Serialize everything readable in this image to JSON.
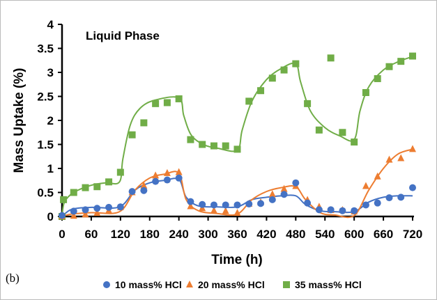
{
  "chart_data": {
    "type": "scatter",
    "panel_label": "(b)",
    "annotation": "Liquid Phase",
    "xlabel": "Time (h)",
    "ylabel": "Mass Uptake (%)",
    "xlim": [
      0,
      720
    ],
    "ylim": [
      0,
      4
    ],
    "xticks": [
      "0",
      "60",
      "120",
      "180",
      "240",
      "300",
      "360",
      "420",
      "480",
      "540",
      "600",
      "660",
      "720"
    ],
    "yticks": [
      "0",
      "0.5",
      "1",
      "1.5",
      "2",
      "2.5",
      "3",
      "3.5",
      "4"
    ],
    "grid": false,
    "legend_position": "bottom",
    "series": [
      {
        "name": "10 mass% HCl",
        "color": "#4472C4",
        "marker": "circle",
        "x": [
          0,
          24,
          48,
          72,
          96,
          120,
          144,
          168,
          192,
          216,
          240,
          264,
          288,
          312,
          336,
          360,
          384,
          408,
          432,
          456,
          480,
          504,
          528,
          552,
          576,
          600,
          624,
          648,
          672,
          696,
          720
        ],
        "y": [
          0.02,
          0.11,
          0.14,
          0.17,
          0.19,
          0.2,
          0.52,
          0.54,
          0.73,
          0.76,
          0.8,
          0.31,
          0.25,
          0.24,
          0.24,
          0.24,
          0.26,
          0.27,
          0.35,
          0.46,
          0.7,
          0.28,
          0.14,
          0.14,
          0.12,
          0.12,
          0.24,
          0.28,
          0.39,
          0.4,
          0.6
        ],
        "fit": [
          [
            0,
            0
          ],
          [
            20,
            0.15
          ],
          [
            60,
            0.19
          ],
          [
            118,
            0.2
          ],
          [
            150,
            0.55
          ],
          [
            180,
            0.7
          ],
          [
            210,
            0.75
          ],
          [
            240,
            0.77
          ],
          [
            255,
            0.4
          ],
          [
            280,
            0.22
          ],
          [
            320,
            0.2
          ],
          [
            360,
            0.2
          ],
          [
            390,
            0.35
          ],
          [
            420,
            0.4
          ],
          [
            450,
            0.43
          ],
          [
            480,
            0.43
          ],
          [
            500,
            0.25
          ],
          [
            530,
            0.12
          ],
          [
            560,
            0.1
          ],
          [
            600,
            0.1
          ],
          [
            630,
            0.3
          ],
          [
            660,
            0.4
          ],
          [
            690,
            0.43
          ],
          [
            720,
            0.43
          ]
        ]
      },
      {
        "name": "20 mass% HCl",
        "color": "#ED7D31",
        "marker": "triangle",
        "x": [
          0,
          24,
          48,
          72,
          96,
          120,
          144,
          168,
          192,
          216,
          240,
          264,
          288,
          312,
          336,
          360,
          384,
          408,
          432,
          456,
          480,
          504,
          528,
          552,
          576,
          600,
          624,
          648,
          672,
          696,
          720
        ],
        "y": [
          0,
          0.01,
          0.04,
          0.07,
          0.12,
          0.19,
          0.5,
          0.64,
          0.85,
          0.9,
          0.92,
          0.21,
          0.17,
          0.12,
          0.11,
          0.07,
          0.26,
          0.29,
          0.46,
          0.57,
          0.63,
          0.34,
          0.2,
          0.13,
          0.13,
          0.1,
          0.63,
          0.83,
          1.18,
          1.21,
          1.4
        ],
        "fit": [
          [
            0,
            0
          ],
          [
            20,
            0.05
          ],
          [
            60,
            0.08
          ],
          [
            118,
            0.1
          ],
          [
            150,
            0.55
          ],
          [
            180,
            0.8
          ],
          [
            210,
            0.88
          ],
          [
            240,
            0.9
          ],
          [
            255,
            0.35
          ],
          [
            280,
            0.12
          ],
          [
            320,
            0.06
          ],
          [
            360,
            0.05
          ],
          [
            390,
            0.35
          ],
          [
            420,
            0.52
          ],
          [
            450,
            0.6
          ],
          [
            480,
            0.62
          ],
          [
            500,
            0.35
          ],
          [
            530,
            0.08
          ],
          [
            560,
            0.03
          ],
          [
            600,
            0.02
          ],
          [
            630,
            0.55
          ],
          [
            660,
            1.0
          ],
          [
            690,
            1.3
          ],
          [
            720,
            1.4
          ]
        ]
      },
      {
        "name": "35 mass% HCl",
        "color": "#70AD47",
        "marker": "square",
        "x": [
          0,
          3,
          24,
          48,
          72,
          96,
          120,
          144,
          168,
          192,
          216,
          240,
          264,
          288,
          312,
          336,
          360,
          384,
          408,
          432,
          456,
          480,
          504,
          528,
          552,
          576,
          600,
          624,
          648,
          672,
          696,
          720
        ],
        "y": [
          0,
          0.35,
          0.5,
          0.6,
          0.62,
          0.72,
          0.92,
          1.7,
          1.95,
          2.35,
          2.37,
          2.45,
          1.6,
          1.5,
          1.47,
          1.47,
          1.4,
          2.4,
          2.62,
          2.88,
          3.05,
          3.18,
          2.35,
          1.8,
          3.3,
          1.75,
          1.55,
          2.58,
          2.87,
          3.12,
          3.23,
          3.34
        ],
        "fit": [
          [
            0,
            0
          ],
          [
            5,
            0.3
          ],
          [
            24,
            0.5
          ],
          [
            60,
            0.65
          ],
          [
            90,
            0.7
          ],
          [
            118,
            0.72
          ],
          [
            125,
            1.2
          ],
          [
            140,
            1.9
          ],
          [
            160,
            2.25
          ],
          [
            190,
            2.42
          ],
          [
            240,
            2.47
          ],
          [
            250,
            2.1
          ],
          [
            265,
            1.7
          ],
          [
            290,
            1.5
          ],
          [
            320,
            1.42
          ],
          [
            360,
            1.38
          ],
          [
            370,
            1.8
          ],
          [
            390,
            2.4
          ],
          [
            420,
            2.85
          ],
          [
            450,
            3.08
          ],
          [
            480,
            3.18
          ],
          [
            490,
            2.8
          ],
          [
            510,
            2.2
          ],
          [
            540,
            1.85
          ],
          [
            570,
            1.68
          ],
          [
            600,
            1.6
          ],
          [
            612,
            2.2
          ],
          [
            630,
            2.7
          ],
          [
            660,
            3.05
          ],
          [
            690,
            3.22
          ],
          [
            720,
            3.33
          ]
        ]
      }
    ]
  }
}
